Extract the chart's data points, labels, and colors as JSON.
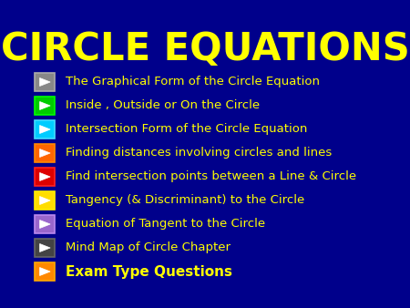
{
  "title": "CIRCLE EQUATIONS",
  "title_color": "#FFFF00",
  "background_color": "#00008B",
  "text_color": "#FFFF00",
  "items": [
    {
      "text": "The Graphical Form of the Circle Equation",
      "box_color": "#888888",
      "box_border": "#AAAAAA"
    },
    {
      "text": "Inside , Outside or On the Circle",
      "box_color": "#00CC00",
      "box_border": "#00FF00"
    },
    {
      "text": "Intersection Form of the Circle Equation",
      "box_color": "#00CCFF",
      "box_border": "#44DDFF"
    },
    {
      "text": "Finding distances involving circles and lines",
      "box_color": "#FF6600",
      "box_border": "#FF8800"
    },
    {
      "text": "Find intersection points between a Line & Circle",
      "box_color": "#DD0000",
      "box_border": "#FF2222"
    },
    {
      "text": "Tangency (& Discriminant) to the Circle",
      "box_color": "#FFDD00",
      "box_border": "#FFEE00"
    },
    {
      "text": "Equation of Tangent to the Circle",
      "box_color": "#9966CC",
      "box_border": "#BB88EE"
    },
    {
      "text": "Mind Map of Circle Chapter",
      "box_color": "#444444",
      "box_border": "#666666"
    },
    {
      "text": "Exam Type Questions",
      "box_color": "#FF8800",
      "box_border": "#FFAA00"
    }
  ],
  "title_fontsize": 30,
  "item_fontsize": 9.5,
  "last_item_fontsize": 11
}
